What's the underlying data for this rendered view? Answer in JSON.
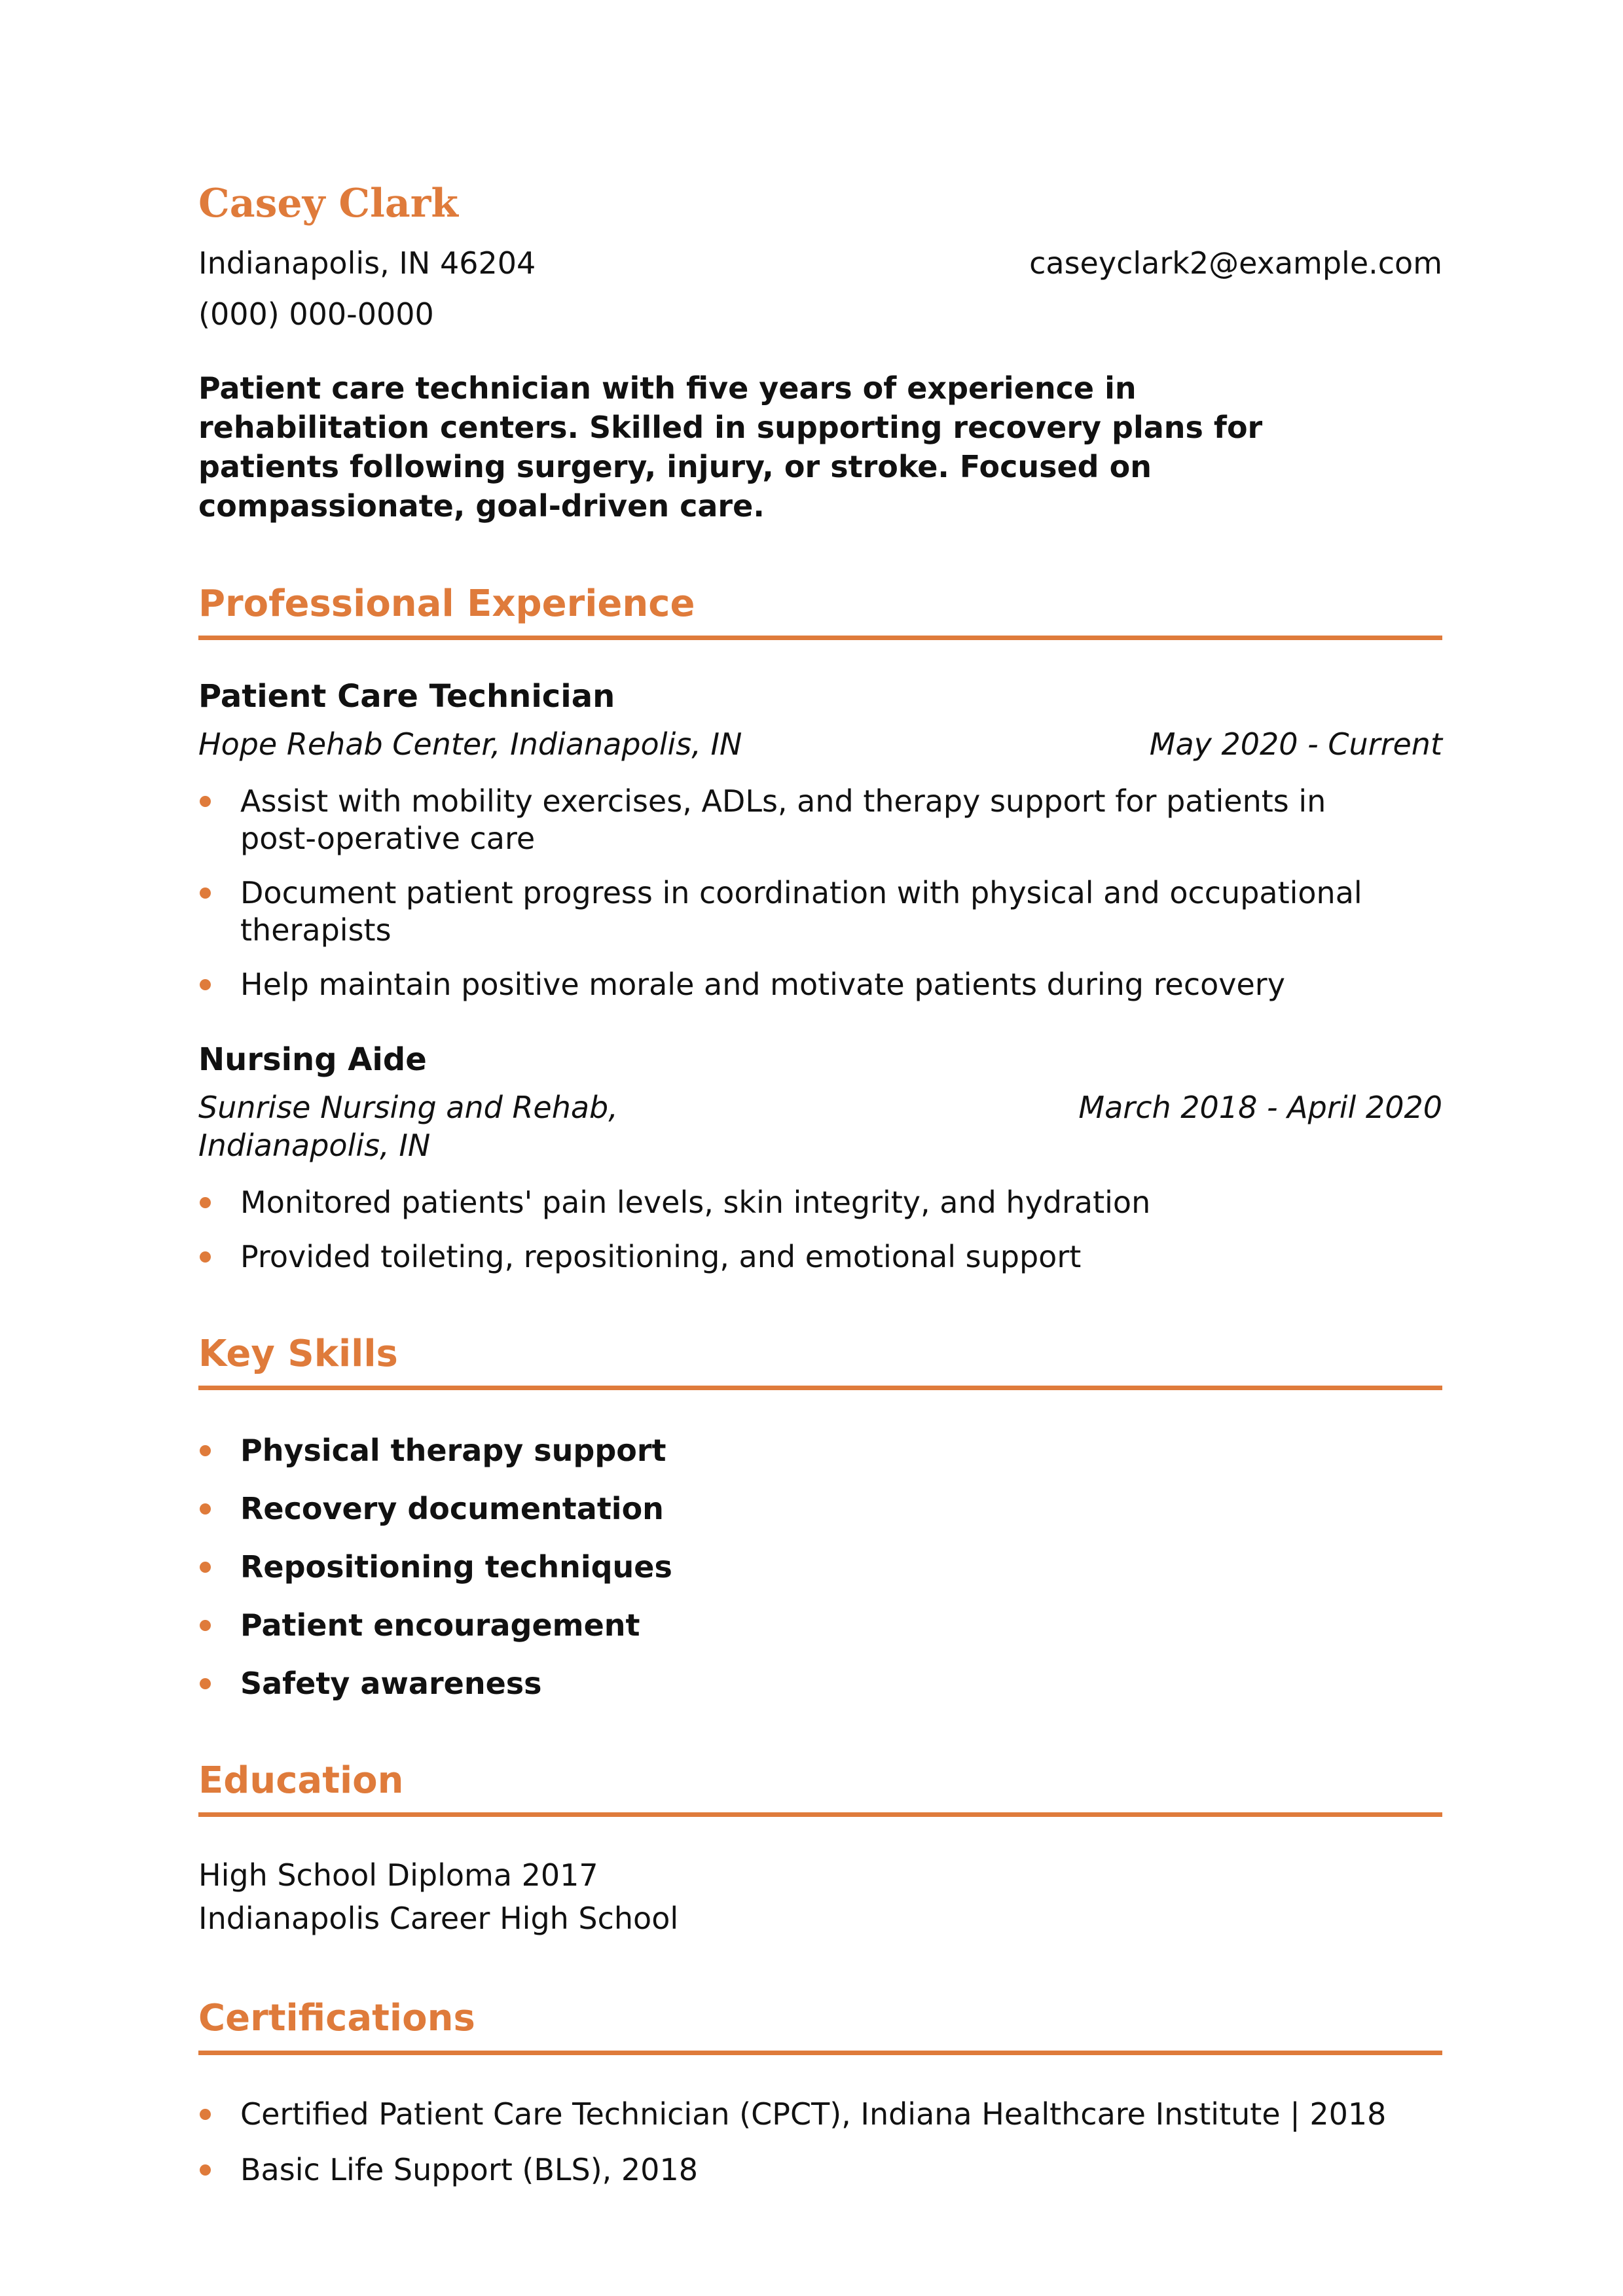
{
  "colors": {
    "accent": "#DF7B3B",
    "text": "#111111"
  },
  "header": {
    "name": "Casey Clark",
    "location": "Indianapolis, IN 46204",
    "email": "caseyclark2@example.com",
    "phone": "(000) 000-0000"
  },
  "summary": "Patient care technician with five years of experience in rehabilitation centers. Skilled in supporting recovery plans for patients following surgery, injury, or stroke. Focused on compassionate, goal-driven care.",
  "sections": {
    "experience": {
      "title": "Professional Experience",
      "jobs": [
        {
          "role": "Patient Care Technician",
          "company": "Hope Rehab Center, Indianapolis, IN",
          "dates": "May 2020 - Current",
          "bullets": [
            "Assist with mobility exercises, ADLs, and therapy support for patients in post-operative care",
            "Document patient progress in coordination with physical and occupational therapists",
            "Help maintain positive morale and motivate patients during recovery"
          ]
        },
        {
          "role": "Nursing Aide",
          "company": "Sunrise Nursing and Rehab, Indianapolis, IN",
          "dates": "March 2018 - April 2020",
          "bullets": [
            "Monitored patients' pain levels, skin integrity, and hydration",
            "Provided toileting, repositioning, and emotional support"
          ]
        }
      ]
    },
    "skills": {
      "title": "Key Skills",
      "items": [
        "Physical therapy support",
        "Recovery documentation",
        "Repositioning techniques",
        "Patient encouragement",
        "Safety awareness"
      ]
    },
    "education": {
      "title": "Education",
      "lines": [
        "High School Diploma 2017",
        "Indianapolis Career High School"
      ]
    },
    "certifications": {
      "title": "Certifications",
      "items": [
        "Certified Patient Care Technician (CPCT), Indiana Healthcare Institute | 2018",
        "Basic Life Support (BLS), 2018"
      ]
    }
  }
}
